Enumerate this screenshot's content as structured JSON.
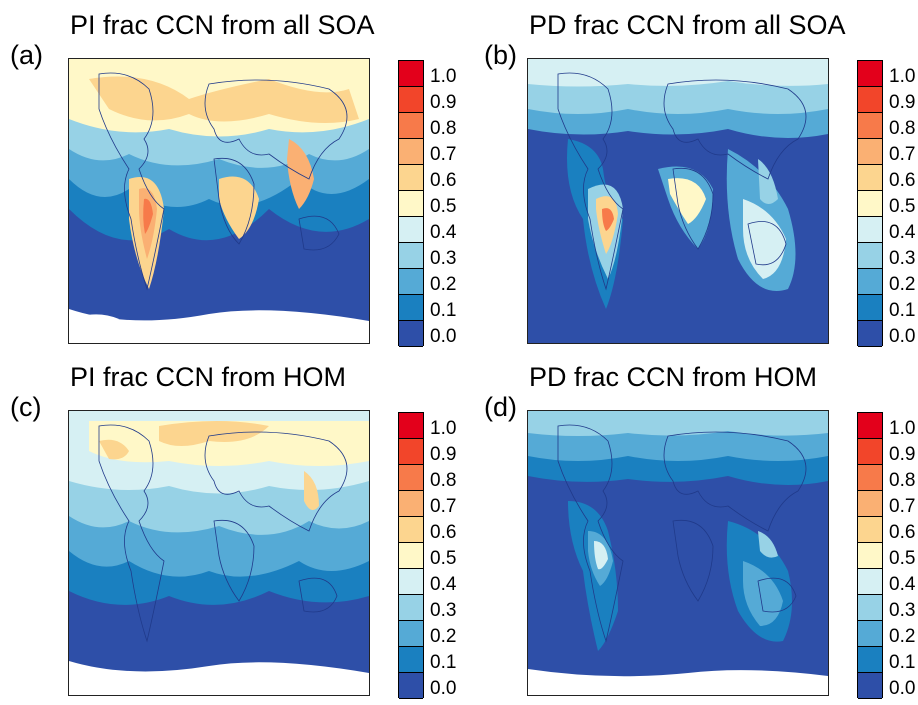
{
  "panels": [
    {
      "letter": "(a)",
      "title": "PI frac CCN from all SOA"
    },
    {
      "letter": "(b)",
      "title": "PD frac CCN from all SOA"
    },
    {
      "letter": "(c)",
      "title": "PI frac CCN from HOM"
    },
    {
      "letter": "(d)",
      "title": "PD frac CCN from HOM"
    }
  ],
  "colorbar": {
    "labels": [
      "1.0",
      "0.9",
      "0.8",
      "0.7",
      "0.6",
      "0.5",
      "0.4",
      "0.3",
      "0.2",
      "0.1",
      "0.0"
    ],
    "colors": [
      "#e3001b",
      "#f2452a",
      "#f77a4a",
      "#fab073",
      "#fcd58f",
      "#fff8c8",
      "#d6f0f3",
      "#97d2e6",
      "#55aad6",
      "#1a80c0",
      "#2e4fa8"
    ]
  }
}
